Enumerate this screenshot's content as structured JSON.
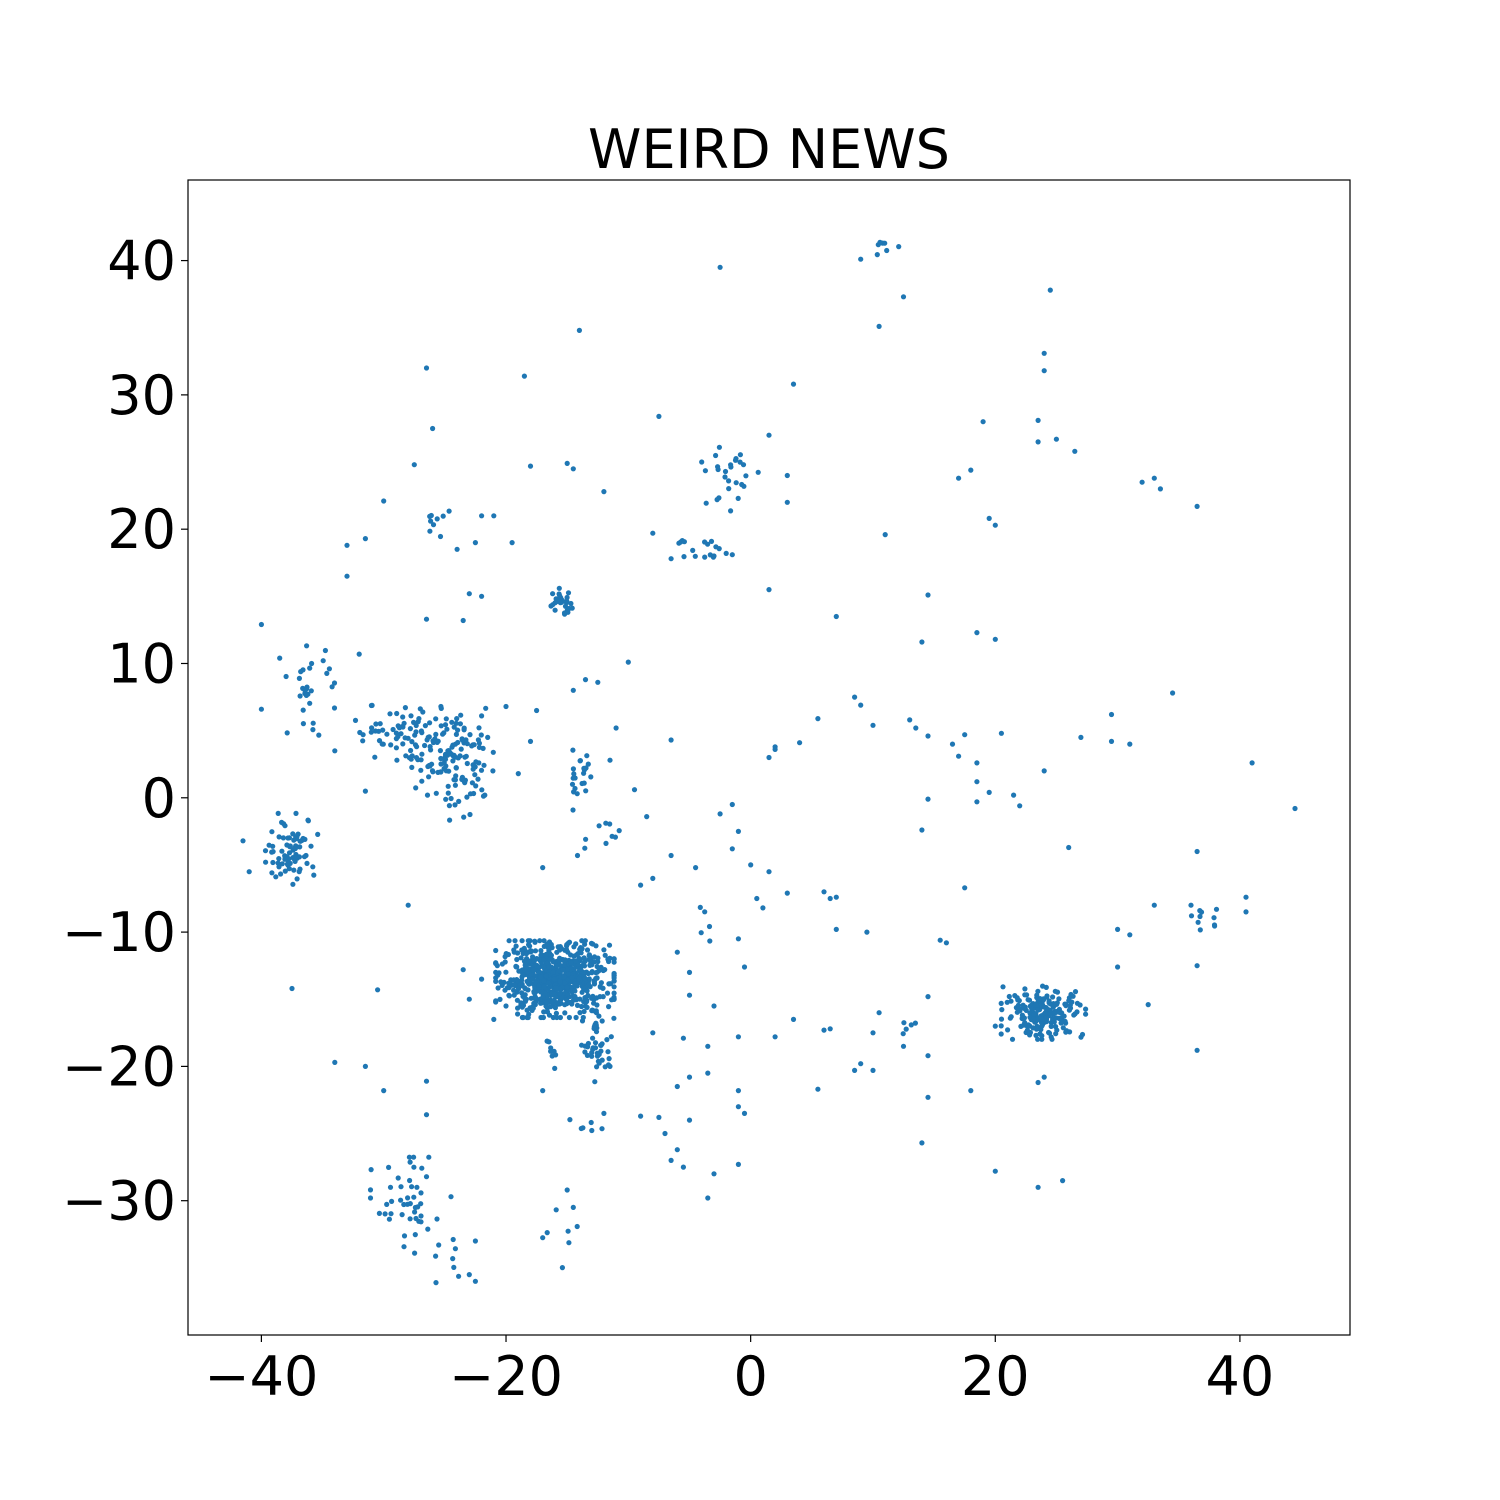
{
  "chart_data": {
    "type": "scatter",
    "title": "WEIRD NEWS",
    "xlabel": "",
    "ylabel": "",
    "xlim": [
      -46,
      49
    ],
    "ylim": [
      -40,
      46
    ],
    "xticks": [
      -40,
      -20,
      0,
      20,
      40
    ],
    "yticks": [
      -30,
      -20,
      -10,
      0,
      10,
      20,
      30,
      40
    ],
    "xtick_labels": [
      "−40",
      "−20",
      "0",
      "20",
      "40"
    ],
    "ytick_labels": [
      "−30",
      "−20",
      "−10",
      "0",
      "10",
      "20",
      "30",
      "40"
    ],
    "grid": false,
    "legend": "none",
    "point_color": "#1f77b4",
    "clusters": [
      {
        "center": [
          -16,
          -13.5
        ],
        "spread": [
          2.2,
          1.3
        ],
        "count": 700
      },
      {
        "center": [
          24,
          -16
        ],
        "spread": [
          1.6,
          0.9
        ],
        "count": 200
      },
      {
        "center": [
          -37.5,
          -3.8
        ],
        "spread": [
          1.0,
          1.2
        ],
        "count": 80
      },
      {
        "center": [
          -12.5,
          -18.5
        ],
        "spread": [
          0.6,
          1.2
        ],
        "count": 45
      },
      {
        "center": [
          -25,
          3.5
        ],
        "spread": [
          1.8,
          1.5
        ],
        "count": 120
      },
      {
        "center": [
          -29,
          5
        ],
        "spread": [
          1.8,
          1.0
        ],
        "count": 45
      },
      {
        "center": [
          -23.5,
          1
        ],
        "spread": [
          1.0,
          1.5
        ],
        "count": 35
      },
      {
        "center": [
          -36,
          8
        ],
        "spread": [
          0.9,
          1.6
        ],
        "count": 30
      },
      {
        "center": [
          -15.5,
          14.5
        ],
        "spread": [
          0.5,
          0.5
        ],
        "count": 28
      },
      {
        "center": [
          -28,
          -30.5
        ],
        "spread": [
          1.4,
          1.7
        ],
        "count": 45
      },
      {
        "center": [
          -14,
          1.5
        ],
        "spread": [
          0.6,
          1.2
        ],
        "count": 22
      },
      {
        "center": [
          -1.5,
          24
        ],
        "spread": [
          1.0,
          1.2
        ],
        "count": 26
      },
      {
        "center": [
          -4.5,
          18.5
        ],
        "spread": [
          1.4,
          0.8
        ],
        "count": 15
      },
      {
        "center": [
          -26,
          20.5
        ],
        "spread": [
          0.7,
          0.6
        ],
        "count": 9
      },
      {
        "center": [
          11,
          41
        ],
        "spread": [
          0.5,
          0.5
        ],
        "count": 7
      },
      {
        "center": [
          37.5,
          -9.5
        ],
        "spread": [
          0.8,
          0.7
        ],
        "count": 10
      },
      {
        "center": [
          -12.5,
          -3
        ],
        "spread": [
          1.0,
          0.7
        ],
        "count": 10
      },
      {
        "center": [
          -14.5,
          -24.5
        ],
        "spread": [
          1.2,
          0.5
        ],
        "count": 6
      },
      {
        "center": [
          -16,
          -32.5
        ],
        "spread": [
          1.0,
          1.5
        ],
        "count": 7
      },
      {
        "center": [
          -24.5,
          -34
        ],
        "spread": [
          1.5,
          1.2
        ],
        "count": 8
      },
      {
        "center": [
          13,
          -17
        ],
        "spread": [
          0.5,
          0.3
        ],
        "count": 5
      },
      {
        "center": [
          -4,
          -9
        ],
        "spread": [
          0.3,
          0.8
        ],
        "count": 5
      },
      {
        "center": [
          -16,
          -19
        ],
        "spread": [
          0.7,
          0.7
        ],
        "count": 8
      }
    ],
    "outliers": [
      [
        -2.5,
        39.5
      ],
      [
        -14,
        34.8
      ],
      [
        -26.5,
        32
      ],
      [
        -18.5,
        31.4
      ],
      [
        -26,
        27.5
      ],
      [
        -7.5,
        28.4
      ],
      [
        -27.5,
        24.8
      ],
      [
        -18,
        24.7
      ],
      [
        -14.5,
        24.5
      ],
      [
        -12,
        22.8
      ],
      [
        -30,
        22.1
      ],
      [
        -31.5,
        19.3
      ],
      [
        -33,
        18.8
      ],
      [
        -33,
        16.5
      ],
      [
        -8,
        19.7
      ],
      [
        -6.5,
        17.8
      ],
      [
        -23,
        15.2
      ],
      [
        -22,
        15
      ],
      [
        -23.5,
        13.2
      ],
      [
        -26.5,
        13.3
      ],
      [
        -38.5,
        10.4
      ],
      [
        -40,
        12.9
      ],
      [
        -40,
        6.6
      ],
      [
        -32,
        10.7
      ],
      [
        -22,
        6.1
      ],
      [
        -20,
        6.8
      ],
      [
        -17.5,
        6.5
      ],
      [
        -13.5,
        8.8
      ],
      [
        -12.5,
        8.6
      ],
      [
        -10,
        10.1
      ],
      [
        -14.5,
        8
      ],
      [
        -11,
        5.2
      ],
      [
        -6.5,
        4.3
      ],
      [
        -18,
        4.2
      ],
      [
        -19,
        1.8
      ],
      [
        -21.5,
        4.5
      ],
      [
        -11.5,
        2.8
      ],
      [
        -9.5,
        0.6
      ],
      [
        -8.5,
        -1.4
      ],
      [
        -9,
        -6.5
      ],
      [
        -8,
        -6
      ],
      [
        -6.5,
        -4.3
      ],
      [
        -4.5,
        -5.2
      ],
      [
        -6,
        -11.5
      ],
      [
        -5,
        -13
      ],
      [
        -5,
        -14.7
      ],
      [
        -5.5,
        -17.9
      ],
      [
        -3,
        -15.5
      ],
      [
        -3.5,
        -20.5
      ],
      [
        -5,
        -20.8
      ],
      [
        -6,
        -21.5
      ],
      [
        -5,
        -24
      ],
      [
        -7.5,
        -23.8
      ],
      [
        -7,
        -25
      ],
      [
        -6,
        -26.2
      ],
      [
        -6.5,
        -27
      ],
      [
        -5.5,
        -27.5
      ],
      [
        -3,
        -28
      ],
      [
        -3.5,
        -29.8
      ],
      [
        -1,
        -27.3
      ],
      [
        -1,
        -21.8
      ],
      [
        -1,
        -23
      ],
      [
        -0.5,
        -23.5
      ],
      [
        -1,
        -17.8
      ],
      [
        -1,
        -10.5
      ],
      [
        -0.5,
        -12.6
      ],
      [
        -3.5,
        -18.5
      ],
      [
        -8,
        -17.5
      ],
      [
        -9,
        -23.7
      ],
      [
        -11.5,
        -20
      ],
      [
        -12,
        -23.5
      ],
      [
        -15,
        -29.2
      ],
      [
        -14.5,
        -30.5
      ],
      [
        -17,
        -21.8
      ],
      [
        -17,
        -5.2
      ],
      [
        -20,
        -15.5
      ],
      [
        -21,
        -16.5
      ],
      [
        -23.5,
        -12.8
      ],
      [
        -23,
        -15
      ],
      [
        -22,
        -13.5
      ],
      [
        -28,
        -8
      ],
      [
        -30.5,
        -14.3
      ],
      [
        -30,
        -21.8
      ],
      [
        -31.5,
        -20
      ],
      [
        -34,
        -19.7
      ],
      [
        -26.5,
        -21.1
      ],
      [
        -26.5,
        -23.6
      ],
      [
        -22.5,
        -33
      ],
      [
        -23,
        -35.5
      ],
      [
        -22.5,
        -36
      ],
      [
        -24.5,
        -29.7
      ],
      [
        -25.5,
        -33.3
      ],
      [
        -37.5,
        -14.2
      ],
      [
        -41.5,
        -3.2
      ],
      [
        -41,
        -5.5
      ],
      [
        -34,
        3.5
      ],
      [
        -31.5,
        0.5
      ],
      [
        -19.5,
        19
      ],
      [
        -21,
        21
      ],
      [
        -22,
        21
      ],
      [
        -22.5,
        19
      ],
      [
        -24,
        18.5
      ],
      [
        -15,
        24.9
      ],
      [
        -4,
        25
      ],
      [
        1.5,
        27
      ],
      [
        3.5,
        30.8
      ],
      [
        3,
        24
      ],
      [
        3,
        22
      ],
      [
        1.5,
        15.5
      ],
      [
        7,
        13.5
      ],
      [
        9,
        40.1
      ],
      [
        10.5,
        35.1
      ],
      [
        12.5,
        37.3
      ],
      [
        11,
        19.6
      ],
      [
        14.5,
        15.1
      ],
      [
        14,
        11.6
      ],
      [
        18.5,
        12.3
      ],
      [
        20,
        11.8
      ],
      [
        17,
        23.8
      ],
      [
        18,
        24.4
      ],
      [
        19,
        28
      ],
      [
        19.5,
        20.8
      ],
      [
        20,
        20.3
      ],
      [
        24.5,
        37.8
      ],
      [
        24,
        33.1
      ],
      [
        24,
        31.8
      ],
      [
        23.5,
        28.1
      ],
      [
        23.5,
        26.5
      ],
      [
        25,
        26.7
      ],
      [
        26.5,
        25.8
      ],
      [
        32,
        23.5
      ],
      [
        33,
        23.8
      ],
      [
        33.5,
        23
      ],
      [
        36.5,
        21.7
      ],
      [
        34.5,
        7.8
      ],
      [
        29.5,
        6.2
      ],
      [
        29.5,
        4.2
      ],
      [
        31,
        4
      ],
      [
        27,
        4.5
      ],
      [
        20.5,
        4.8
      ],
      [
        17.5,
        4.7
      ],
      [
        16.5,
        4
      ],
      [
        17,
        3.1
      ],
      [
        18.5,
        2.6
      ],
      [
        19.5,
        0.4
      ],
      [
        18.5,
        -0.3
      ],
      [
        18.5,
        1.2
      ],
      [
        21.5,
        0.2
      ],
      [
        22,
        -0.6
      ],
      [
        14.5,
        4.6
      ],
      [
        13,
        5.8
      ],
      [
        13.5,
        5.2
      ],
      [
        14.5,
        -0.1
      ],
      [
        14,
        -2.4
      ],
      [
        10,
        5.4
      ],
      [
        8.5,
        7.5
      ],
      [
        9,
        6.9
      ],
      [
        5.5,
        5.9
      ],
      [
        4,
        4.1
      ],
      [
        2,
        3.8
      ],
      [
        1.5,
        3
      ],
      [
        2,
        3.6
      ],
      [
        -1.5,
        -0.5
      ],
      [
        -2.5,
        -1.2
      ],
      [
        -1,
        -2.5
      ],
      [
        -1.5,
        -3.8
      ],
      [
        0,
        -5
      ],
      [
        0.5,
        -7.5
      ],
      [
        1,
        -8.2
      ],
      [
        1.5,
        -5.5
      ],
      [
        3,
        -7.1
      ],
      [
        6,
        -7
      ],
      [
        6.5,
        -7.5
      ],
      [
        7,
        -7.4
      ],
      [
        7,
        -9.8
      ],
      [
        9.5,
        -10
      ],
      [
        6,
        -17.3
      ],
      [
        6.5,
        -17.2
      ],
      [
        2,
        -17.8
      ],
      [
        3.5,
        -16.5
      ],
      [
        5.5,
        -21.7
      ],
      [
        9,
        -19.8
      ],
      [
        8.5,
        -20.3
      ],
      [
        10,
        -20.3
      ],
      [
        10,
        -17.5
      ],
      [
        10.5,
        -16
      ],
      [
        12.5,
        -18.5
      ],
      [
        14.5,
        -14.8
      ],
      [
        14.5,
        -19.2
      ],
      [
        14.5,
        -22.3
      ],
      [
        14,
        -25.7
      ],
      [
        16,
        -10.8
      ],
      [
        15.5,
        -10.6
      ],
      [
        17.5,
        -6.7
      ],
      [
        18,
        -21.8
      ],
      [
        20,
        -27.8
      ],
      [
        20,
        -17
      ],
      [
        23.5,
        -29
      ],
      [
        25.5,
        -28.5
      ],
      [
        23.5,
        -21.2
      ],
      [
        24,
        -20.8
      ],
      [
        26,
        -3.7
      ],
      [
        24,
        2
      ],
      [
        30,
        -9.8
      ],
      [
        31,
        -10.2
      ],
      [
        30,
        -12.6
      ],
      [
        32.5,
        -15.4
      ],
      [
        33,
        -8
      ],
      [
        36,
        -8
      ],
      [
        36.5,
        -4
      ],
      [
        36.5,
        -12.5
      ],
      [
        36.5,
        -18.8
      ],
      [
        40.5,
        -8.5
      ],
      [
        40.5,
        -7.4
      ],
      [
        41,
        2.6
      ],
      [
        44.5,
        -0.8
      ],
      [
        -2,
        18.2
      ],
      [
        -3,
        18
      ],
      [
        -1.5,
        18.1
      ]
    ]
  }
}
